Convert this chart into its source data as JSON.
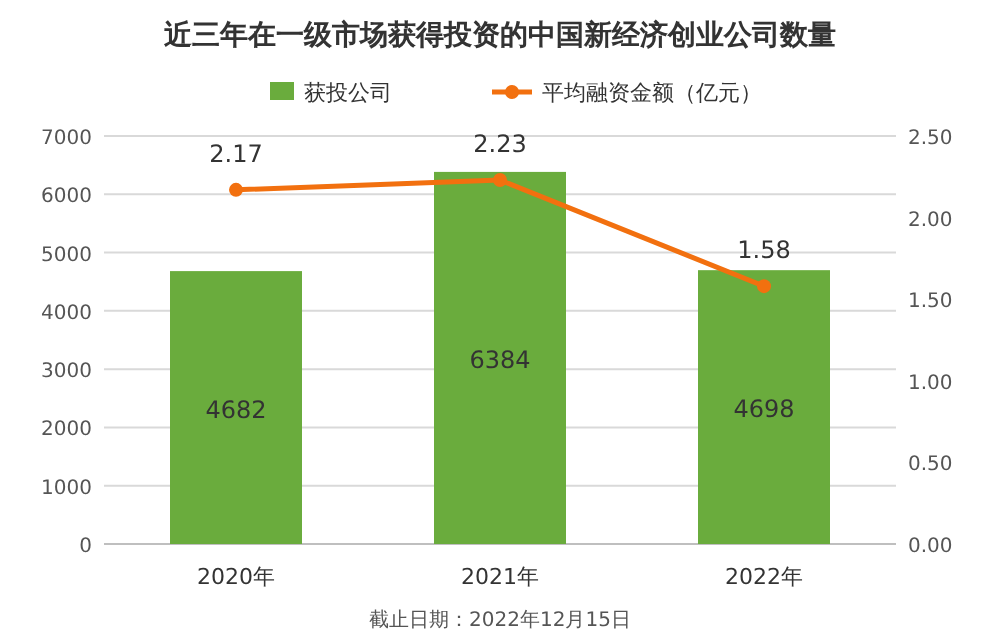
{
  "chart_data": {
    "type": "bar",
    "title": "近三年在一级市场获得投资的中国新经济创业公司数量",
    "categories": [
      "2020年",
      "2021年",
      "2022年"
    ],
    "series": [
      {
        "name": "获投公司",
        "color": "#6aac3d",
        "values": [
          4682,
          6384,
          4698
        ]
      },
      {
        "name": "平均融资金额（亿元）",
        "type": "line",
        "axis": "y2",
        "color": "#f2700f",
        "values": [
          2.17,
          2.23,
          1.58
        ],
        "marker": "circle"
      }
    ],
    "ylim": [
      0,
      7000
    ],
    "yticks": [
      0,
      1000,
      2000,
      3000,
      4000,
      5000,
      6000,
      7000
    ],
    "y2lim": [
      0,
      2.5
    ],
    "y2ticks": [
      {
        "value": 0,
        "label": "0.00"
      },
      {
        "value": 0.5,
        "label": "0.50"
      },
      {
        "value": 1,
        "label": "1.00"
      },
      {
        "value": 1.5,
        "label": "1.50"
      },
      {
        "value": 2,
        "label": "2.00"
      },
      {
        "value": 2.5,
        "label": "2.50"
      }
    ],
    "grid": "y",
    "legend": "top",
    "data_labels": true,
    "annotations": [
      "截止日期：2022年12月15日"
    ]
  }
}
